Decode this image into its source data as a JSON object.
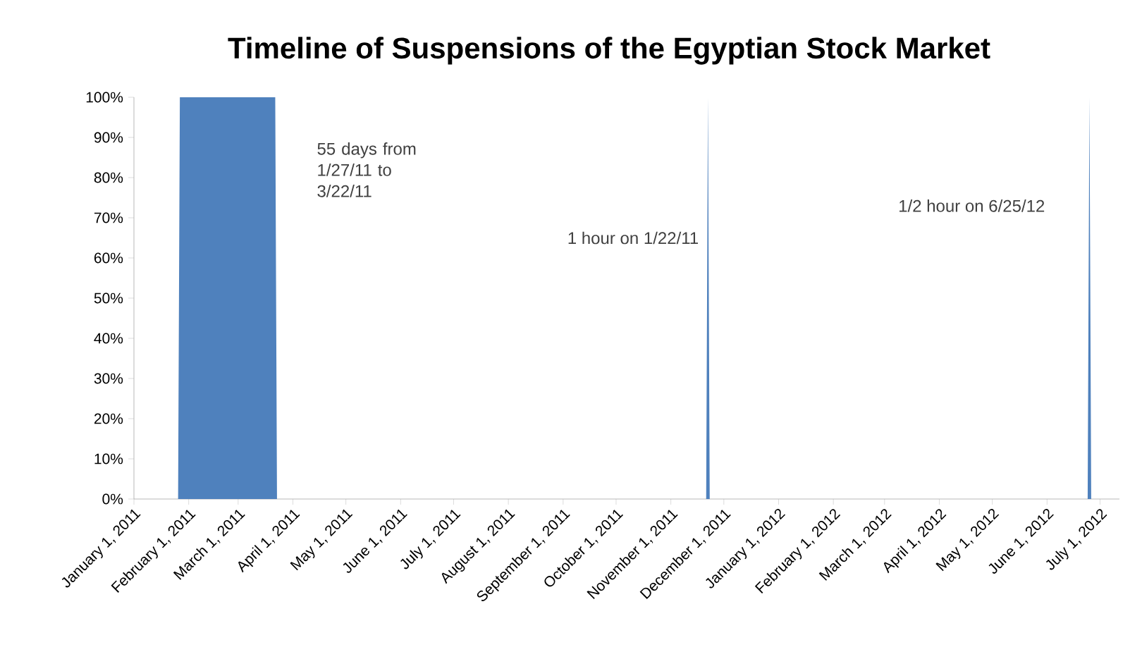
{
  "chart_data": {
    "type": "area",
    "title": "Timeline of Suspensions of the Egyptian Stock Market",
    "x": [
      "2011-01-01",
      "2011-01-26",
      "2011-01-27",
      "2011-03-22",
      "2011-03-23",
      "2011-11-21",
      "2011-11-22",
      "2011-11-23",
      "2012-06-24",
      "2012-06-25",
      "2012-06-26",
      "2012-07-12"
    ],
    "values": [
      0,
      0,
      100,
      100,
      0,
      0,
      100,
      0,
      0,
      100,
      0,
      0
    ],
    "color": "#4f81bd",
    "xlim": [
      "2011-01-01",
      "2012-07-12"
    ],
    "xticks": [
      {
        "value": "2011-01-01",
        "label": "January 1, 2011"
      },
      {
        "value": "2011-02-01",
        "label": "February 1, 2011"
      },
      {
        "value": "2011-03-01",
        "label": "March 1, 2011"
      },
      {
        "value": "2011-04-01",
        "label": "April 1, 2011"
      },
      {
        "value": "2011-05-01",
        "label": "May 1, 2011"
      },
      {
        "value": "2011-06-01",
        "label": "June 1, 2011"
      },
      {
        "value": "2011-07-01",
        "label": "July 1, 2011"
      },
      {
        "value": "2011-08-01",
        "label": "August 1, 2011"
      },
      {
        "value": "2011-09-01",
        "label": "September 1, 2011"
      },
      {
        "value": "2011-10-01",
        "label": "October 1, 2011"
      },
      {
        "value": "2011-11-01",
        "label": "November 1, 2011"
      },
      {
        "value": "2011-12-01",
        "label": "December 1, 2011"
      },
      {
        "value": "2012-01-01",
        "label": "January 1, 2012"
      },
      {
        "value": "2012-02-01",
        "label": "February 1, 2012"
      },
      {
        "value": "2012-03-01",
        "label": "March 1, 2012"
      },
      {
        "value": "2012-04-01",
        "label": "April 1, 2012"
      },
      {
        "value": "2012-05-01",
        "label": "May 1, 2012"
      },
      {
        "value": "2012-06-01",
        "label": "June 1, 2012"
      },
      {
        "value": "2012-07-01",
        "label": "July 1, 2012"
      }
    ],
    "ylim": [
      0,
      100
    ],
    "yticks": [
      {
        "value": 0,
        "label": "0%"
      },
      {
        "value": 10,
        "label": "10%"
      },
      {
        "value": 20,
        "label": "20%"
      },
      {
        "value": 30,
        "label": "30%"
      },
      {
        "value": 40,
        "label": "40%"
      },
      {
        "value": 50,
        "label": "50%"
      },
      {
        "value": 60,
        "label": "60%"
      },
      {
        "value": 70,
        "label": "70%"
      },
      {
        "value": 80,
        "label": "80%"
      },
      {
        "value": 90,
        "label": "90%"
      },
      {
        "value": 100,
        "label": "100%"
      }
    ],
    "grid": false,
    "annotations": [
      {
        "text": "55 days from 1/27/11 to 3/22/11",
        "x": "2011-03-22",
        "y": 90
      },
      {
        "text": "1 hour on 1/22/11",
        "x": "2011-11-22",
        "y": 65
      },
      {
        "text": "1/2 hour on 6/25/12",
        "x": "2012-06-25",
        "y": 73
      }
    ]
  }
}
